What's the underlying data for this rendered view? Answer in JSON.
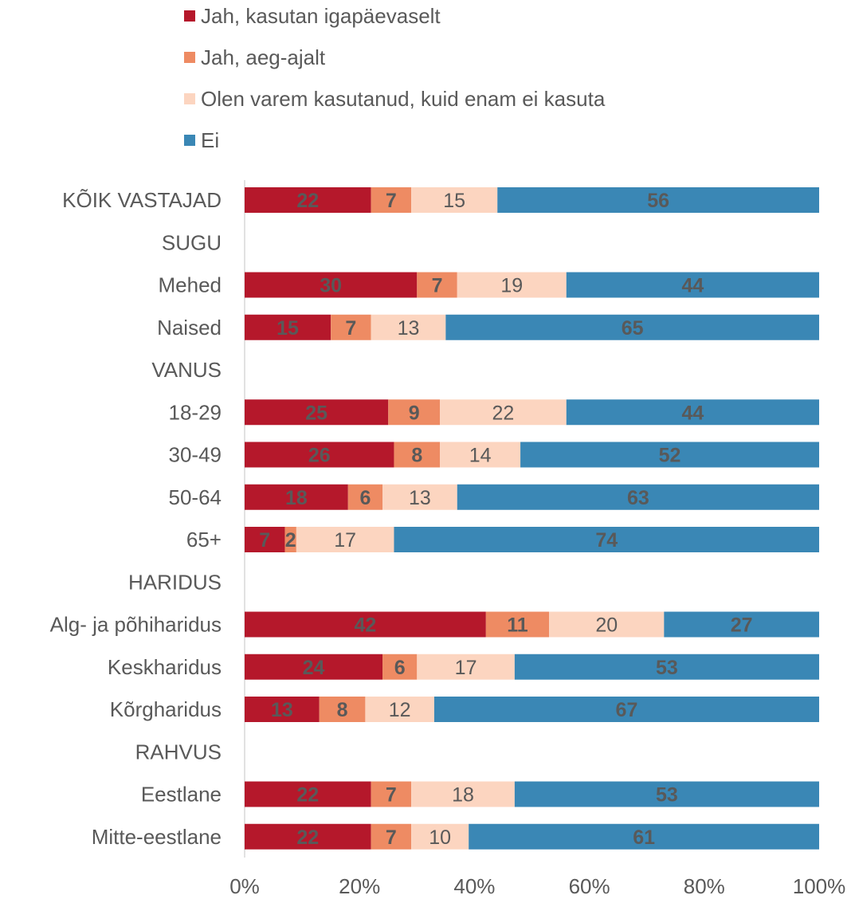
{
  "chart_data": {
    "type": "stacked_bar_horizontal",
    "categories": [
      "KÕIK VASTAJAD",
      "SUGU",
      "Mehed",
      "Naised",
      "VANUS",
      "18-29",
      "30-49",
      "50-64",
      "65+",
      "HARIDUS",
      "Alg- ja põhiharidus",
      "Keskharidus",
      "Kõrgharidus",
      "RAHVUS",
      "Eestlane",
      "Mitte-eestlane"
    ],
    "series": [
      {
        "name": "Jah, kasutan igapäevaselt",
        "color": "#b5182b",
        "values": [
          22,
          null,
          30,
          15,
          null,
          25,
          26,
          18,
          7,
          null,
          42,
          24,
          13,
          null,
          22,
          22
        ]
      },
      {
        "name": "Jah, aeg-ajalt",
        "color": "#ee8b63",
        "values": [
          7,
          null,
          7,
          7,
          null,
          9,
          8,
          6,
          2,
          null,
          11,
          6,
          8,
          null,
          7,
          7
        ]
      },
      {
        "name": "Olen varem kasutanud, kuid enam ei kasuta",
        "color": "#fcd5c0",
        "values": [
          15,
          null,
          19,
          13,
          null,
          22,
          14,
          13,
          17,
          null,
          20,
          17,
          12,
          null,
          18,
          10
        ]
      },
      {
        "name": "Ei",
        "color": "#3a87b5",
        "values": [
          56,
          null,
          44,
          65,
          null,
          44,
          52,
          63,
          74,
          null,
          27,
          53,
          67,
          null,
          53,
          61
        ]
      }
    ],
    "xlim": [
      0,
      100
    ],
    "xticks": [
      {
        "value": 0,
        "label": "0%"
      },
      {
        "value": 20,
        "label": "20%"
      },
      {
        "value": 40,
        "label": "40%"
      },
      {
        "value": 60,
        "label": "60%"
      },
      {
        "value": 80,
        "label": "80%"
      },
      {
        "value": 100,
        "label": "100%"
      }
    ],
    "legend": "top"
  }
}
